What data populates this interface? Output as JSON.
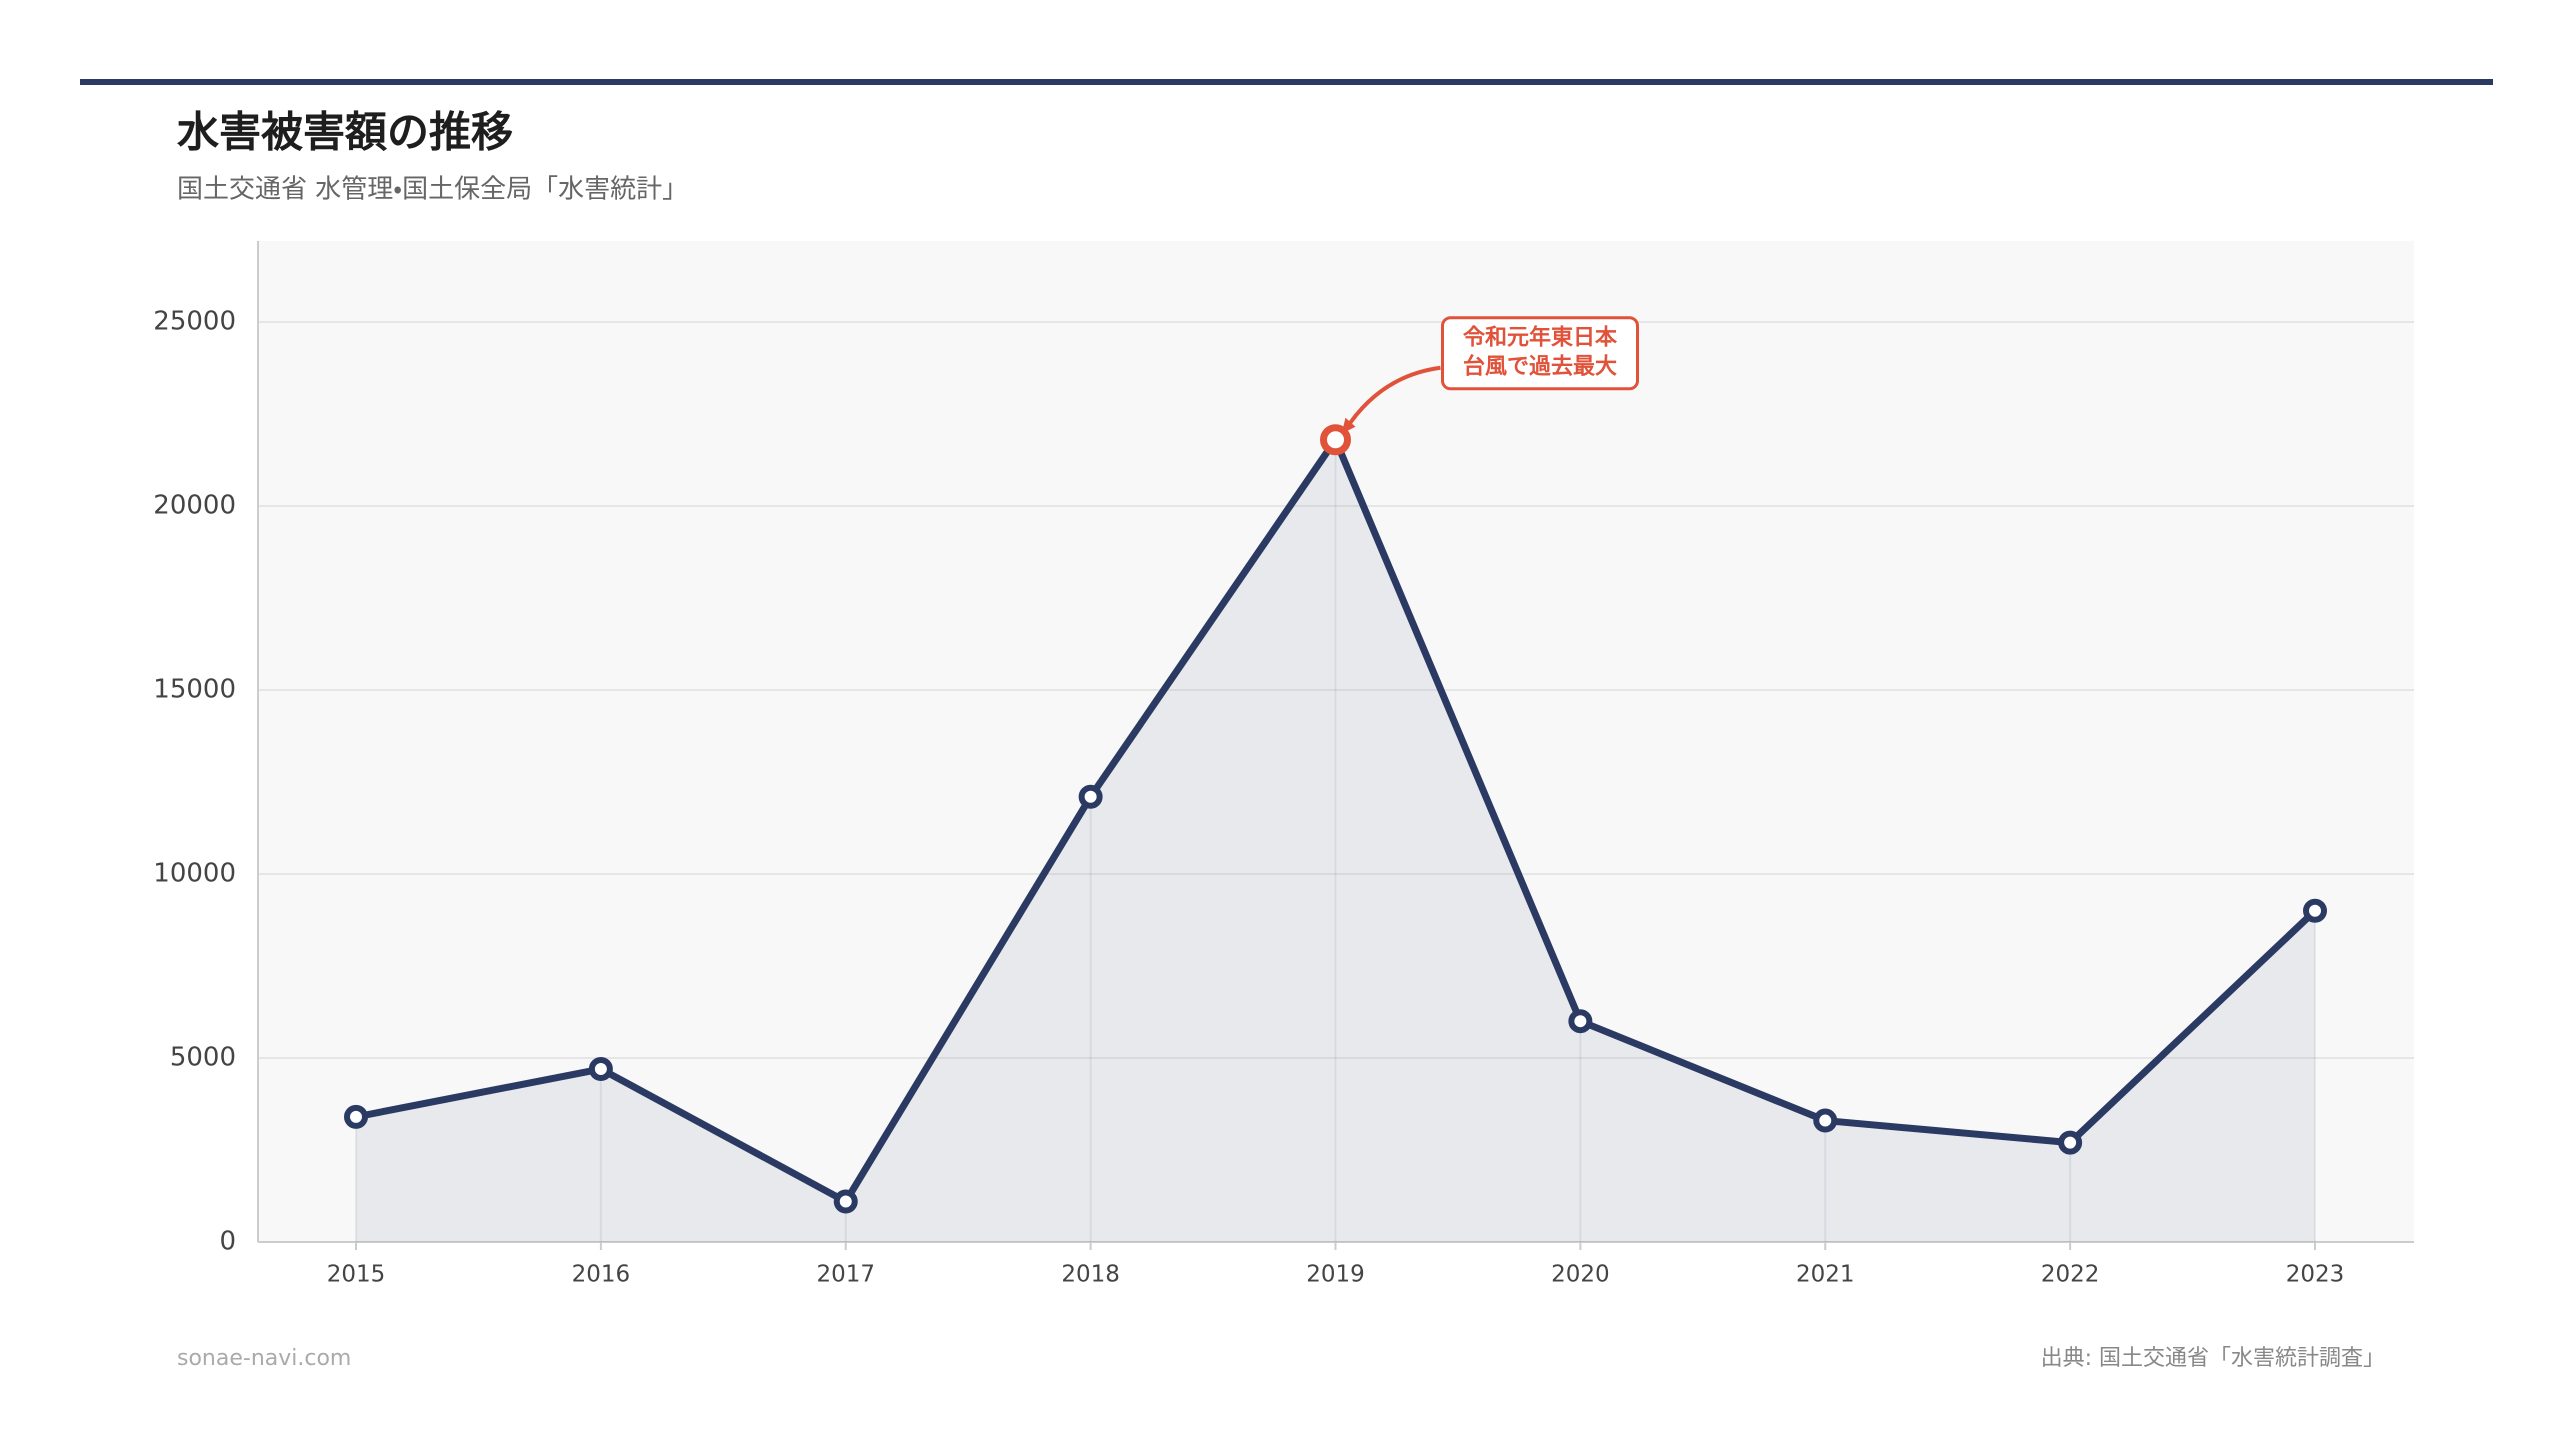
{
  "chart_data": {
    "type": "line",
    "title": "水害被害額の推移",
    "subtitle": "国土交通省 水管理・国土保全局「水害統計」",
    "categories": [
      "2015",
      "2016",
      "2017",
      "2018",
      "2019",
      "2020",
      "2021",
      "2022",
      "2023"
    ],
    "values": [
      3400,
      4700,
      1100,
      12100,
      21800,
      6000,
      3300,
      2700,
      9000
    ],
    "color": "#2b3a63",
    "ylim": [
      0,
      27200
    ],
    "yticks": [
      0,
      5000,
      10000,
      15000,
      20000,
      25000
    ],
    "grid": true,
    "annotation": {
      "index": 4,
      "lines": [
        "令和元年東日本",
        "台風で過去最大"
      ],
      "color": "#e0533a"
    },
    "footer": "sonae-navi.com",
    "source": "出典: 国土交通省「水害統計調査」"
  }
}
